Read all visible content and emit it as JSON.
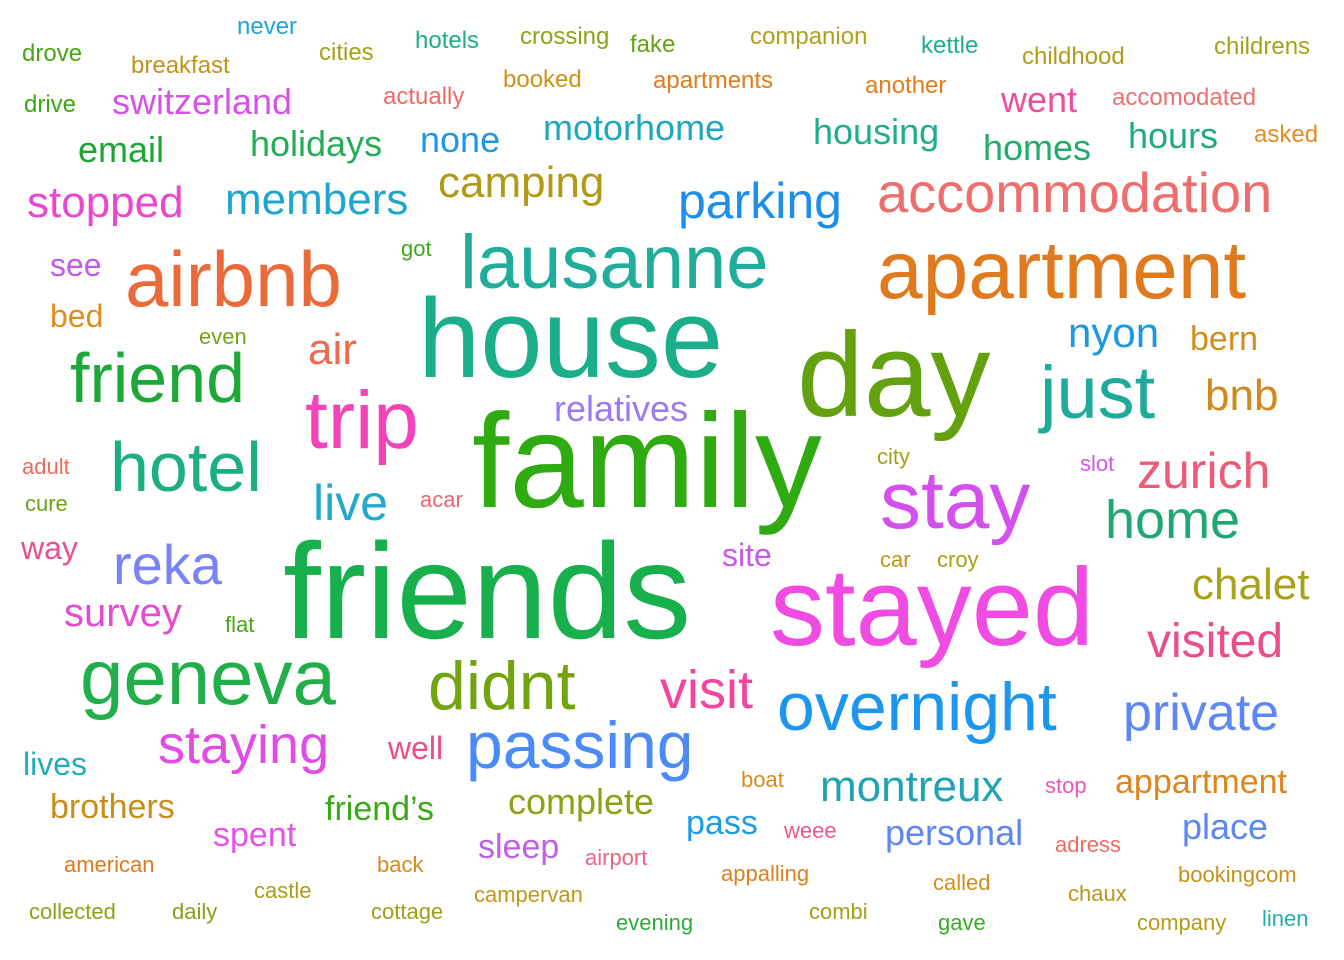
{
  "words": [
    {
      "text": "family",
      "color": "#2FAA11"
    },
    {
      "text": "friends",
      "color": "#18B04C"
    },
    {
      "text": "house",
      "color": "#1AAE89"
    },
    {
      "text": "stayed",
      "color": "#F04CE4"
    },
    {
      "text": "day",
      "color": "#63A10F"
    },
    {
      "text": "apartment",
      "color": "#E07A1C"
    },
    {
      "text": "airbnb",
      "color": "#EB6A39"
    },
    {
      "text": "lausanne",
      "color": "#20AE9B"
    },
    {
      "text": "trip",
      "color": "#F243B8"
    },
    {
      "text": "stay",
      "color": "#D450EE"
    },
    {
      "text": "geneva",
      "color": "#22AF4B"
    },
    {
      "text": "overnight",
      "color": "#1C97EE"
    },
    {
      "text": "just",
      "color": "#1FAB9A"
    },
    {
      "text": "friend",
      "color": "#1EA83A"
    },
    {
      "text": "hotel",
      "color": "#1EAE84"
    },
    {
      "text": "accommodation",
      "color": "#EE6D6D"
    },
    {
      "text": "passing",
      "color": "#4A8BF7"
    },
    {
      "text": "didnt",
      "color": "#73A40E"
    },
    {
      "text": "reka",
      "color": "#7982F6"
    },
    {
      "text": "staying",
      "color": "#E14CE4"
    },
    {
      "text": "visit",
      "color": "#F2469E"
    },
    {
      "text": "private",
      "color": "#5D87F6"
    },
    {
      "text": "zurich",
      "color": "#EC5C78"
    },
    {
      "text": "home",
      "color": "#1FA871"
    },
    {
      "text": "parking",
      "color": "#1C8FEC"
    },
    {
      "text": "visited",
      "color": "#EB4D8C"
    },
    {
      "text": "chalet",
      "color": "#A9A11A"
    },
    {
      "text": "live",
      "color": "#23A9CC"
    },
    {
      "text": "nyon",
      "color": "#1B99E2"
    },
    {
      "text": "camping",
      "color": "#B29A15"
    },
    {
      "text": "members",
      "color": "#20A6CE"
    },
    {
      "text": "montreux",
      "color": "#20A4B3"
    },
    {
      "text": "bnb",
      "color": "#D2891C"
    },
    {
      "text": "air",
      "color": "#EC6A4E"
    },
    {
      "text": "survey",
      "color": "#E64AD0"
    },
    {
      "text": "stopped",
      "color": "#EC46CE"
    },
    {
      "text": "appartment",
      "color": "#DE851C"
    },
    {
      "text": "motorhome",
      "color": "#21A7BC"
    },
    {
      "text": "housing",
      "color": "#1FAE8C"
    },
    {
      "text": "holidays",
      "color": "#25AC57"
    },
    {
      "text": "switzerland",
      "color": "#D653E8"
    },
    {
      "text": "personal",
      "color": "#5D86F6"
    },
    {
      "text": "complete",
      "color": "#8FA115"
    },
    {
      "text": "relatives",
      "color": "#9B7AF3"
    },
    {
      "text": "place",
      "color": "#5C88F6"
    },
    {
      "text": "none",
      "color": "#1D98E8"
    },
    {
      "text": "email",
      "color": "#1DA431"
    },
    {
      "text": "homes",
      "color": "#22AC6B"
    },
    {
      "text": "hours",
      "color": "#1FAB80"
    },
    {
      "text": "went",
      "color": "#EE4E9E"
    },
    {
      "text": "bern",
      "color": "#D18E1B"
    },
    {
      "text": "brothers",
      "color": "#C88E19"
    },
    {
      "text": "friend’s",
      "color": "#3AA917"
    },
    {
      "text": "spent",
      "color": "#E552E8"
    },
    {
      "text": "sleep",
      "color": "#C15EE7"
    },
    {
      "text": "pass",
      "color": "#1D9BE3"
    },
    {
      "text": "lives",
      "color": "#1FAFBD"
    },
    {
      "text": "well",
      "color": "#F04C84"
    },
    {
      "text": "see",
      "color": "#C359EA"
    },
    {
      "text": "bed",
      "color": "#DF8E1C"
    },
    {
      "text": "site",
      "color": "#C659EA"
    },
    {
      "text": "way",
      "color": "#EE4E8B"
    },
    {
      "text": "hotels",
      "color": "#20AE82"
    },
    {
      "text": "crossing",
      "color": "#8BA516"
    },
    {
      "text": "fake",
      "color": "#63A410"
    },
    {
      "text": "companion",
      "color": "#B0A01A"
    },
    {
      "text": "kettle",
      "color": "#21AE8F"
    },
    {
      "text": "childhood",
      "color": "#B39A17"
    },
    {
      "text": "childrens",
      "color": "#A7A117"
    },
    {
      "text": "drove",
      "color": "#48A515"
    },
    {
      "text": "never",
      "color": "#20A3D8"
    },
    {
      "text": "cities",
      "color": "#A5A016"
    },
    {
      "text": "breakfast",
      "color": "#C3921A"
    },
    {
      "text": "booked",
      "color": "#D0911B"
    },
    {
      "text": "apartments",
      "color": "#E07C1C"
    },
    {
      "text": "another",
      "color": "#E57C1E"
    },
    {
      "text": "drive",
      "color": "#3EA615"
    },
    {
      "text": "actually",
      "color": "#EF6A6A"
    },
    {
      "text": "accomodated",
      "color": "#EF6F6F"
    },
    {
      "text": "asked",
      "color": "#E88A1E"
    },
    {
      "text": "got",
      "color": "#40A818"
    },
    {
      "text": "even",
      "color": "#71A617"
    },
    {
      "text": "city",
      "color": "#A99E17"
    },
    {
      "text": "slot",
      "color": "#D555E8"
    },
    {
      "text": "adult",
      "color": "#EE6B5B"
    },
    {
      "text": "acar",
      "color": "#EE6470"
    },
    {
      "text": "cure",
      "color": "#6DA416"
    },
    {
      "text": "car",
      "color": "#BC951A"
    },
    {
      "text": "croy",
      "color": "#A99E17"
    },
    {
      "text": "flat",
      "color": "#46A716"
    },
    {
      "text": "boat",
      "color": "#D48D1C"
    },
    {
      "text": "stop",
      "color": "#EE55B5"
    },
    {
      "text": "weee",
      "color": "#F0568D"
    },
    {
      "text": "adress",
      "color": "#EE6A5E"
    },
    {
      "text": "american",
      "color": "#E3771E"
    },
    {
      "text": "back",
      "color": "#D68A1C"
    },
    {
      "text": "airport",
      "color": "#EE6282"
    },
    {
      "text": "appalling",
      "color": "#DF801C"
    },
    {
      "text": "called",
      "color": "#D19019"
    },
    {
      "text": "bookingcom",
      "color": "#C3921A"
    },
    {
      "text": "castle",
      "color": "#A99E17"
    },
    {
      "text": "campervan",
      "color": "#C1961A"
    },
    {
      "text": "chaux",
      "color": "#B99917"
    },
    {
      "text": "collected",
      "color": "#8FA116"
    },
    {
      "text": "daily",
      "color": "#81A315"
    },
    {
      "text": "cottage",
      "color": "#99A116"
    },
    {
      "text": "combi",
      "color": "#A1A116"
    },
    {
      "text": "evening",
      "color": "#2DAA3D"
    },
    {
      "text": "gave",
      "color": "#3AAA2A"
    },
    {
      "text": "company",
      "color": "#B79A17"
    },
    {
      "text": "linen",
      "color": "#1EAFB4"
    }
  ]
}
